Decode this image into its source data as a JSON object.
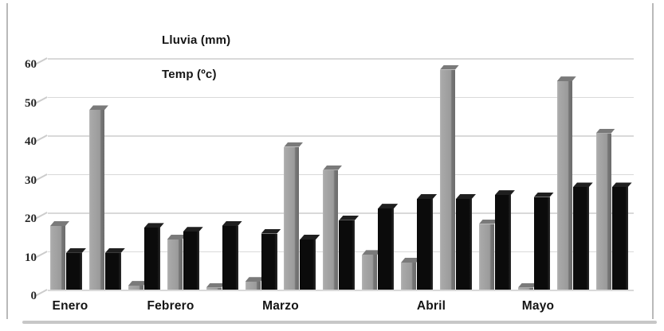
{
  "chart_data": {
    "type": "bar",
    "title": "",
    "legend": [
      "Lluvia (mm)",
      "Temp (ºc)"
    ],
    "legend_position": "top-center-stacked-text",
    "categories": [
      "Enero",
      "Febrero",
      "Marzo",
      "Abril",
      "Mayo"
    ],
    "bars_per_month": 3,
    "x": [
      1,
      2,
      3,
      4,
      5,
      6,
      7,
      8,
      9,
      10,
      11,
      12,
      13,
      14,
      15
    ],
    "series": [
      {
        "name": "Lluvia (mm)",
        "color": "#9e9e9e",
        "values": [
          16.5,
          46.5,
          1,
          13,
          0.5,
          2,
          37,
          31,
          9,
          7,
          57,
          17,
          0.5,
          54,
          40.5
        ]
      },
      {
        "name": "Temp (ºc)",
        "color": "#0d0d0d",
        "values": [
          9.5,
          9.5,
          16,
          15,
          16.5,
          14.5,
          13,
          18,
          21,
          23.5,
          23.5,
          24.5,
          24,
          26.5,
          26.5
        ]
      }
    ],
    "y_ticks": [
      0,
      10,
      20,
      30,
      40,
      50,
      60
    ],
    "ylim": [
      0,
      60
    ],
    "grid": true,
    "style": "3d-column-grayscale",
    "colors": {
      "rain_bar": "#9e9e9e",
      "temp_bar": "#0d0d0d",
      "gridline": "#d9d9d9"
    }
  }
}
